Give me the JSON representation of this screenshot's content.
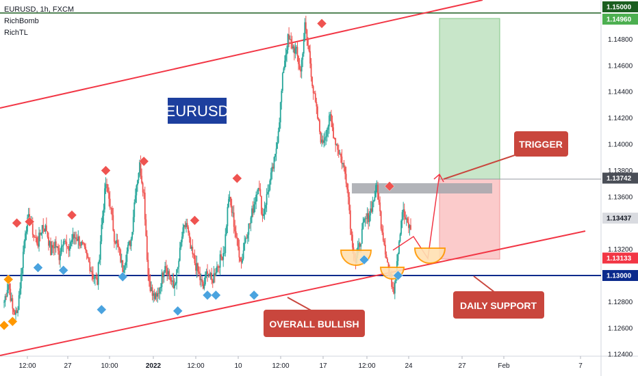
{
  "legend": {
    "symbol": "EURUSD, 1h, FXCM",
    "indicator_1": "RichBomb",
    "indicator_2": "RichTL"
  },
  "colors": {
    "up": "#26a69a",
    "down": "#ef5350",
    "trendline": "#f23645",
    "support": "#0b2a8c",
    "resistance": "#1b5e20",
    "callout": "#c9463d",
    "label_box": "#1d3f9e",
    "orange": "#ff9800",
    "blue_marker": "#4aa3df",
    "red_marker": "#ef5350"
  },
  "chart_data": {
    "type": "candlestick",
    "symbol": "EURUSD",
    "timeframe": "1h",
    "ylim": [
      1.124,
      1.152
    ],
    "x_ticks": [
      "12:00",
      "27",
      "10:00",
      "2022",
      "12:00",
      "10",
      "12:00",
      "17",
      "12:00",
      "24",
      "27",
      "Feb",
      "7"
    ],
    "y_ticks": [
      "1.14800",
      "1.14600",
      "1.14400",
      "1.14200",
      "1.14000",
      "1.13800",
      "1.13600",
      "1.13200",
      "1.12800",
      "1.12600",
      "1.12400"
    ],
    "price_badges": [
      {
        "value": "1.15000",
        "kind": "resistance"
      },
      {
        "value": "1.14960",
        "kind": "take_profit"
      },
      {
        "value": "1.13742",
        "kind": "entry"
      },
      {
        "value": "1.13437",
        "kind": "last_price"
      },
      {
        "value": "1.13133",
        "kind": "stop_loss"
      },
      {
        "value": "1.13000",
        "kind": "support"
      }
    ],
    "horizontal_lines": [
      {
        "name": "resistance",
        "value": 1.15
      },
      {
        "name": "daily-support",
        "value": 1.13
      }
    ],
    "trade_setup": {
      "entry": 1.13742,
      "take_profit": 1.1496,
      "stop_loss": 1.13133
    },
    "annotations": [
      "EURUSD",
      "TRIGGER",
      "DAILY SUPPORT",
      "OVERALL BULLISH"
    ],
    "close_path": [
      1.128,
      1.1295,
      1.1274,
      1.127,
      1.13,
      1.1335,
      1.1345,
      1.133,
      1.1325,
      1.1338,
      1.1335,
      1.1318,
      1.1325,
      1.1315,
      1.133,
      1.1318,
      1.1328,
      1.133,
      1.1325,
      1.1318,
      1.131,
      1.13,
      1.1295,
      1.1338,
      1.137,
      1.1355,
      1.133,
      1.132,
      1.1305,
      1.1318,
      1.1328,
      1.1365,
      1.1385,
      1.1362,
      1.13,
      1.1285,
      1.1282,
      1.1295,
      1.131,
      1.13,
      1.129,
      1.1305,
      1.133,
      1.134,
      1.132,
      1.131,
      1.13,
      1.129,
      1.1305,
      1.1295,
      1.1305,
      1.1312,
      1.132,
      1.136,
      1.1345,
      1.1325,
      1.131,
      1.133,
      1.134,
      1.1355,
      1.137,
      1.1345,
      1.136,
      1.1375,
      1.139,
      1.142,
      1.146,
      1.148,
      1.1475,
      1.147,
      1.1455,
      1.149,
      1.147,
      1.144,
      1.142,
      1.14,
      1.141,
      1.142,
      1.1405,
      1.1395,
      1.1385,
      1.137,
      1.133,
      1.131,
      1.1325,
      1.134,
      1.1345,
      1.1355,
      1.1368,
      1.134,
      1.132,
      1.13,
      1.129,
      1.132,
      1.135,
      1.134,
      1.1335
    ],
    "pattern_path": [
      1.1345,
      1.1332,
      1.132,
      1.1325,
      1.137
    ],
    "markers": [
      {
        "index": 0,
        "type": "orange",
        "price": 1.1262
      },
      {
        "index": 1,
        "type": "orange",
        "price": 1.1297
      },
      {
        "index": 2,
        "type": "orange",
        "price": 1.1265
      },
      {
        "index": 3,
        "type": "red",
        "price": 1.134
      },
      {
        "index": 6,
        "type": "red",
        "price": 1.1341
      },
      {
        "index": 8,
        "type": "blue",
        "price": 1.1306
      },
      {
        "index": 14,
        "type": "blue",
        "price": 1.1304
      },
      {
        "index": 16,
        "type": "red",
        "price": 1.1346
      },
      {
        "index": 23,
        "type": "blue",
        "price": 1.1274
      },
      {
        "index": 24,
        "type": "red",
        "price": 1.138
      },
      {
        "index": 28,
        "type": "blue",
        "price": 1.1299
      },
      {
        "index": 33,
        "type": "red",
        "price": 1.1387
      },
      {
        "index": 41,
        "type": "blue",
        "price": 1.1273
      },
      {
        "index": 45,
        "type": "red",
        "price": 1.1342
      },
      {
        "index": 48,
        "type": "blue",
        "price": 1.1285
      },
      {
        "index": 50,
        "type": "blue",
        "price": 1.1285
      },
      {
        "index": 55,
        "type": "red",
        "price": 1.1374
      },
      {
        "index": 59,
        "type": "blue",
        "price": 1.1285
      },
      {
        "index": 75,
        "type": "red",
        "price": 1.1492
      },
      {
        "index": 85,
        "type": "blue",
        "price": 1.1312
      },
      {
        "index": 91,
        "type": "red",
        "price": 1.1368
      },
      {
        "index": 93,
        "type": "blue",
        "price": 1.13
      }
    ]
  }
}
